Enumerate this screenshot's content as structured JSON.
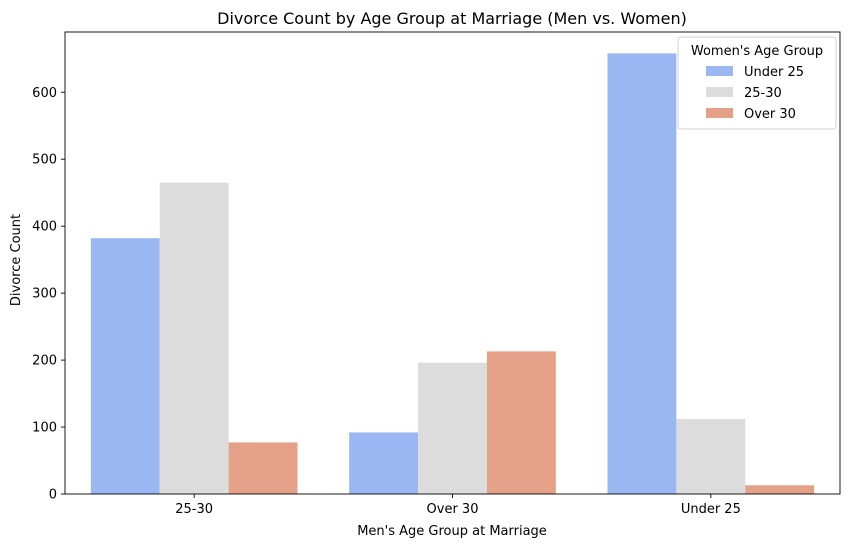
{
  "chart_data": {
    "type": "bar",
    "title": "Divorce Count by Age Group at Marriage (Men vs. Women)",
    "xlabel": "Men's Age Group at Marriage",
    "ylabel": "Divorce Count",
    "categories": [
      "25-30",
      "Over 30",
      "Under 25"
    ],
    "series": [
      {
        "name": "Under 25",
        "color": "#9ab7f2",
        "values": [
          382,
          92,
          658
        ]
      },
      {
        "name": "25-30",
        "color": "#dcdcdc",
        "values": [
          465,
          196,
          112
        ]
      },
      {
        "name": "Over 30",
        "color": "#e4a188",
        "values": [
          77,
          213,
          13
        ]
      }
    ],
    "ylim": [
      0,
      690
    ],
    "yticks": [
      0,
      100,
      200,
      300,
      400,
      500,
      600
    ],
    "legend": {
      "title": "Women's Age Group",
      "placement": "top-right"
    },
    "grid": false
  }
}
